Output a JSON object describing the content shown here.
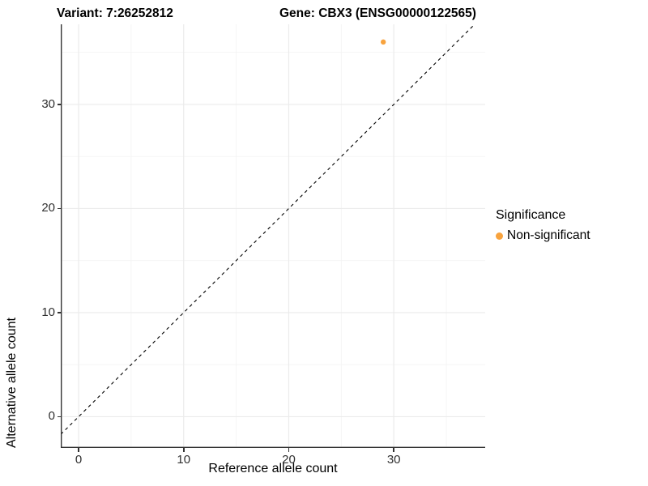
{
  "header": {
    "variant_title": "Variant: 7:26252812",
    "gene_title": "Gene: CBX3 (ENSG00000122565)"
  },
  "chart_data": {
    "type": "scatter",
    "title": "Variant: 7:26252812   Gene: CBX3 (ENSG00000122565)",
    "xlabel": "Reference allele count",
    "ylabel": "Alternative allele count",
    "xlim": [
      -1.7,
      38.7
    ],
    "ylim": [
      -3.0,
      37.7
    ],
    "xticks": [
      0,
      10,
      20,
      30
    ],
    "yticks": [
      0,
      10,
      20,
      30
    ],
    "xminor": [
      5,
      15,
      25,
      35
    ],
    "yminor": [
      5,
      15,
      25,
      35
    ],
    "grid": true,
    "identity_line": {
      "slope": 1,
      "intercept": 0,
      "style": "dashed",
      "color": "#000000"
    },
    "series": [
      {
        "name": "Non-significant",
        "color": "#F8A33E",
        "points": [
          {
            "x": 29,
            "y": 36
          }
        ]
      }
    ],
    "legend": {
      "title": "Significance",
      "position": "right",
      "entries": [
        {
          "label": "Non-significant",
          "color": "#F8A33E"
        }
      ]
    }
  },
  "colors": {
    "point": "#F8A33E",
    "axis_line": "#333333",
    "grid_major": "#EBEBEB",
    "grid_minor": "#F4F4F4",
    "identity_line": "#000000",
    "background": "#FFFFFF"
  }
}
